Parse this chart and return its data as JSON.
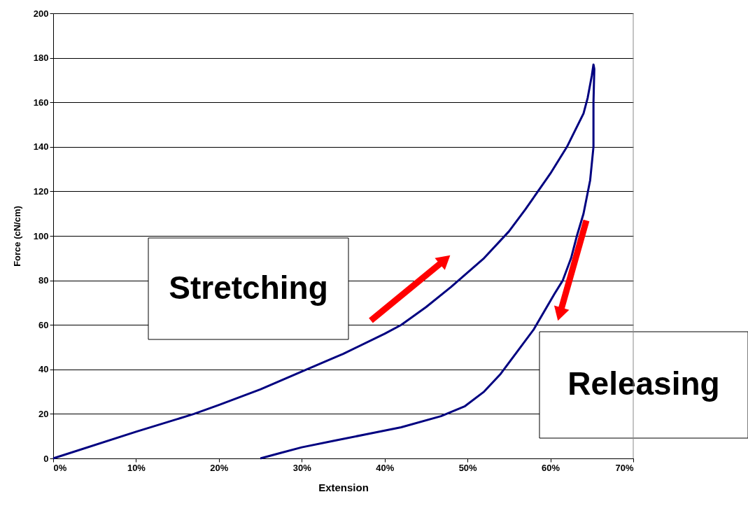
{
  "chart_data": {
    "type": "line",
    "xlabel": "Extension",
    "ylabel": "Force (cN/cm)",
    "series": [
      {
        "color": "#000080",
        "x": [
          0,
          10,
          17,
          20,
          25,
          30,
          35,
          40,
          42,
          45,
          48,
          52,
          55,
          57,
          58.5,
          60,
          62,
          64,
          64.5,
          65,
          65.2,
          65.3,
          65.2,
          65.2,
          64.8,
          64,
          63.2,
          62.5,
          61.5,
          60.5,
          58,
          56,
          54,
          52,
          49.7,
          46.8,
          42,
          38,
          34,
          30,
          27.5,
          25
        ],
        "values": [
          0,
          12,
          20,
          24,
          31,
          39,
          47,
          56,
          60,
          68,
          77,
          90,
          102,
          112,
          120,
          128,
          140,
          155,
          162,
          172,
          177,
          175,
          160,
          140,
          125,
          110,
          100,
          90,
          80,
          74,
          58,
          48,
          38,
          30,
          23.5,
          19,
          14,
          11,
          8,
          5,
          2.5,
          0
        ]
      }
    ],
    "xlim": [
      0,
      70
    ],
    "ylim": [
      0,
      200
    ],
    "xticks": [
      {
        "value": 0,
        "label": "0%"
      },
      {
        "value": 10,
        "label": "10%"
      },
      {
        "value": 20,
        "label": "20%"
      },
      {
        "value": 30,
        "label": "30%"
      },
      {
        "value": 40,
        "label": "40%"
      },
      {
        "value": 50,
        "label": "50%"
      },
      {
        "value": 60,
        "label": "60%"
      },
      {
        "value": 70,
        "label": "70%"
      }
    ],
    "yticks": [
      0,
      20,
      40,
      60,
      80,
      100,
      120,
      140,
      160,
      180,
      200
    ],
    "grid": "y",
    "marker": "none",
    "line_style": "solid",
    "annotations": [
      "Stretching",
      "Releasing"
    ]
  }
}
